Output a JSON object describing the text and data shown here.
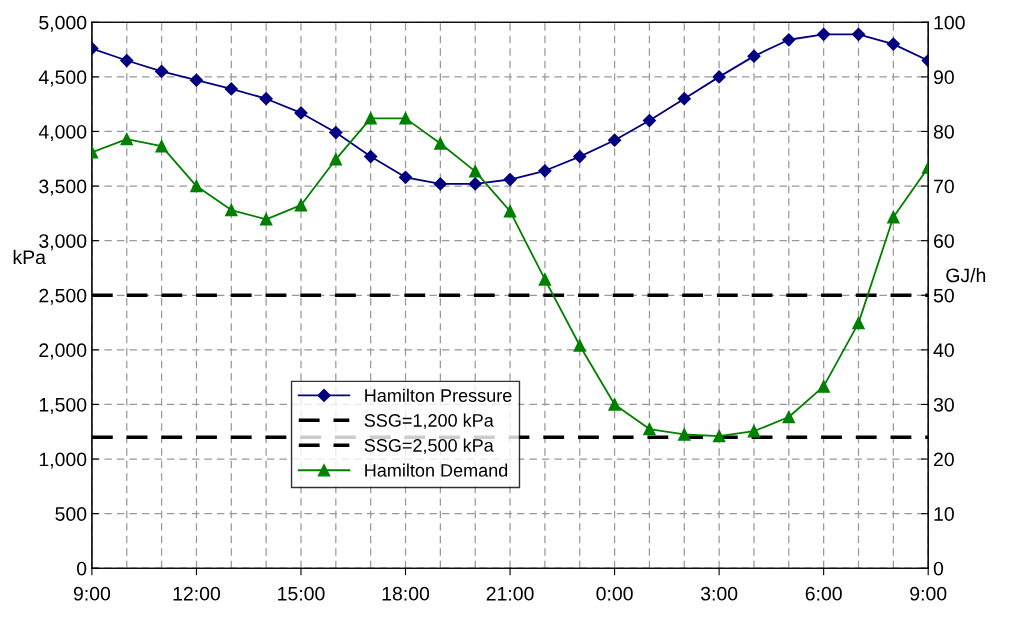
{
  "chart_data": {
    "type": "line",
    "ylabel": "kPa",
    "y2label": "GJ/h",
    "categories": [
      "9:00",
      null,
      null,
      "12:00",
      null,
      null,
      "15:00",
      null,
      null,
      "18:00",
      null,
      null,
      "21:00",
      null,
      null,
      "0:00",
      null,
      null,
      "3:00",
      null,
      null,
      "6:00",
      null,
      null,
      "9:00"
    ],
    "ylim": [
      0,
      5000
    ],
    "yticks": [
      0,
      {
        "value": 500,
        "label": "500"
      },
      {
        "value": 1000,
        "label": "1,000"
      },
      {
        "value": 1500,
        "label": "1,500"
      },
      {
        "value": 2000,
        "label": "2,000"
      },
      {
        "value": 2500,
        "label": "2,500"
      },
      {
        "value": 3000,
        "label": "3,000"
      },
      {
        "value": 3500,
        "label": "3,500"
      },
      {
        "value": 4000,
        "label": "4,000"
      },
      {
        "value": 4500,
        "label": "4,500"
      },
      {
        "value": 5000,
        "label": "5,000"
      }
    ],
    "y2lim": [
      0,
      100
    ],
    "y2ticks": [
      0,
      10,
      20,
      30,
      40,
      50,
      60,
      70,
      80,
      90,
      100
    ],
    "series": [
      {
        "name": "Hamilton Pressure",
        "color": "#000080",
        "marker": "diamond",
        "values": [
          4760,
          4650,
          4550,
          4470,
          4390,
          4300,
          4170,
          3990,
          3770,
          3580,
          3520,
          3520,
          3560,
          3640,
          3770,
          3920,
          4100,
          4300,
          4500,
          4690,
          4840,
          4890,
          4890,
          4800,
          4650
        ]
      },
      {
        "name": "Hamilton Demand",
        "color": "#008000",
        "marker": "triangle",
        "axis": "y2",
        "values": [
          76.2,
          78.6,
          77.3,
          70.0,
          65.6,
          63.9,
          66.5,
          74.9,
          82.4,
          82.4,
          77.8,
          72.7,
          65.4,
          52.9,
          40.8,
          30.0,
          25.5,
          24.5,
          24.2,
          25.1,
          27.7,
          33.3,
          44.9,
          64.3,
          73.4
        ]
      }
    ],
    "ref_lines": [
      {
        "axis": "y",
        "value": 1200,
        "label": "SSG=1,200 kPa",
        "color": "#000000",
        "line_style": "dashed"
      },
      {
        "axis": "y",
        "value": 2500,
        "label": "SSG=2,500 kPa",
        "color": "#000000",
        "line_style": "dashed"
      }
    ],
    "grid": true,
    "legend": "bottom left",
    "line_style": "solid"
  }
}
